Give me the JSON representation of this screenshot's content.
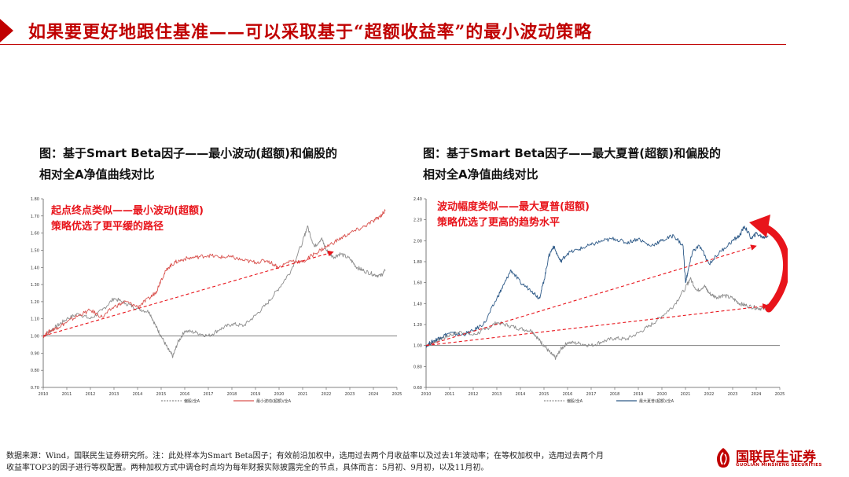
{
  "header": {
    "title": "如果要更好地跟住基准——可以采取基于“超额收益率”的最小波动策略"
  },
  "left_chart": {
    "title_line1": "图：基于Smart Beta因子——最小波动(超额)和偏股的",
    "title_line2": "相对全A净值曲线对比",
    "annotation_line1": "起点终点类似——最小波动(超额)",
    "annotation_line2": "策略优选了更平缓的路径",
    "legend": [
      "偏股/全A",
      "最小波动(超额)/全A"
    ]
  },
  "right_chart": {
    "title_line1": "图：基于Smart Beta因子——最大夏普(超额)和偏股的",
    "title_line2": "相对全A净值曲线对比",
    "annotation_line1": "波动幅度类似——最大夏普(超额)",
    "annotation_line2": "策略优选了更高的趋势水平",
    "legend": [
      "偏股/全A",
      "最大夏普(超额)/全A"
    ]
  },
  "footer": {
    "note_line1": "数据来源：Wind，国联民生证券研究所。注：此处样本为Smart Beta因子；有效前沿加权中，选用过去两个月收益率以及过去1年波动率；在等权加权中，选用过去两个月",
    "note_line2": "收益率TOP3的因子进行等权配置。两种加权方式中调仓时点均为每年财报实际披露完全的节点，具体而言：5月初、9月初，以及11月初。",
    "logo_cn": "国联民生证券",
    "logo_en": "GUOLIAN MINSHENG SECURITIES"
  },
  "colors": {
    "brand_red": "#c00000",
    "annotation_red": "#e8141b",
    "series_grey": "#8c8c8c",
    "series_red": "#d9534f",
    "series_blue": "#2e5a88",
    "baseline": "#7f7f7f"
  },
  "chart_data": [
    {
      "type": "line",
      "title": "图：基于Smart Beta因子——最小波动(超额)和偏股的相对全A净值曲线对比",
      "x_ticks": [
        "2010",
        "2011",
        "2012",
        "2013",
        "2014",
        "2015",
        "2016",
        "2017",
        "2018",
        "2019",
        "2020",
        "2021",
        "2022",
        "2023",
        "2024",
        "2025"
      ],
      "ylim": [
        0.7,
        1.8
      ],
      "y_ticks": [
        "0.70",
        "0.80",
        "0.90",
        "1.00",
        "1.10",
        "1.20",
        "1.30",
        "1.40",
        "1.50",
        "1.60",
        "1.70",
        "1.80"
      ],
      "baseline": 1.0,
      "grid": false,
      "legend_position": "bottom",
      "series": [
        {
          "name": "偏股/全A",
          "color": "#8c8c8c",
          "x": [
            2010.0,
            2010.3,
            2010.6,
            2011.0,
            2011.5,
            2012.0,
            2012.5,
            2013.0,
            2013.5,
            2014.0,
            2014.5,
            2014.8,
            2015.0,
            2015.3,
            2015.5,
            2015.7,
            2016.0,
            2016.5,
            2017.0,
            2017.5,
            2018.0,
            2018.5,
            2019.0,
            2019.5,
            2020.0,
            2020.5,
            2021.0,
            2021.2,
            2021.5,
            2021.8,
            2022.0,
            2022.3,
            2022.6,
            2023.0,
            2023.3,
            2023.6,
            2024.0,
            2024.3,
            2024.5
          ],
          "values": [
            1.0,
            1.03,
            1.06,
            1.1,
            1.13,
            1.1,
            1.15,
            1.22,
            1.19,
            1.16,
            1.14,
            1.05,
            1.0,
            0.92,
            0.88,
            0.96,
            1.03,
            1.02,
            1.0,
            1.04,
            1.07,
            1.06,
            1.12,
            1.19,
            1.28,
            1.38,
            1.55,
            1.64,
            1.52,
            1.57,
            1.5,
            1.46,
            1.48,
            1.45,
            1.4,
            1.38,
            1.36,
            1.35,
            1.38
          ]
        },
        {
          "name": "最小波动(超额)/全A",
          "color": "#d9534f",
          "x": [
            2010.0,
            2010.3,
            2010.6,
            2011.0,
            2011.5,
            2012.0,
            2012.5,
            2013.0,
            2013.5,
            2014.0,
            2014.5,
            2014.8,
            2015.0,
            2015.3,
            2015.6,
            2016.0,
            2016.5,
            2017.0,
            2017.5,
            2018.0,
            2018.5,
            2019.0,
            2019.5,
            2020.0,
            2020.5,
            2021.0,
            2021.5,
            2022.0,
            2022.5,
            2023.0,
            2023.5,
            2024.0,
            2024.3,
            2024.5
          ],
          "values": [
            1.0,
            1.03,
            1.05,
            1.08,
            1.12,
            1.15,
            1.11,
            1.17,
            1.2,
            1.17,
            1.22,
            1.26,
            1.33,
            1.4,
            1.43,
            1.45,
            1.46,
            1.47,
            1.46,
            1.46,
            1.44,
            1.43,
            1.44,
            1.4,
            1.44,
            1.43,
            1.48,
            1.52,
            1.56,
            1.6,
            1.63,
            1.67,
            1.7,
            1.73
          ]
        }
      ],
      "arrows": [
        {
          "from": [
            2010.0,
            1.0
          ],
          "to": [
            2022.3,
            1.49
          ]
        }
      ]
    },
    {
      "type": "line",
      "title": "图：基于Smart Beta因子——最大夏普(超额)和偏股的相对全A净值曲线对比",
      "x_ticks": [
        "2010",
        "2011",
        "2012",
        "2013",
        "2014",
        "2015",
        "2016",
        "2017",
        "2018",
        "2019",
        "2020",
        "2021",
        "2022",
        "2023",
        "2024",
        "2025"
      ],
      "ylim": [
        0.6,
        2.4
      ],
      "y_ticks": [
        "0.60",
        "0.80",
        "1.00",
        "1.20",
        "1.40",
        "1.60",
        "1.80",
        "2.00",
        "2.20",
        "2.40"
      ],
      "baseline": 1.0,
      "grid": false,
      "legend_position": "bottom",
      "series": [
        {
          "name": "偏股/全A",
          "color": "#8c8c8c",
          "x": [
            2010.0,
            2010.3,
            2010.6,
            2011.0,
            2011.5,
            2012.0,
            2012.5,
            2013.0,
            2013.5,
            2014.0,
            2014.5,
            2014.8,
            2015.0,
            2015.3,
            2015.5,
            2015.7,
            2016.0,
            2016.5,
            2017.0,
            2017.5,
            2018.0,
            2018.5,
            2019.0,
            2019.5,
            2020.0,
            2020.5,
            2021.0,
            2021.2,
            2021.5,
            2021.8,
            2022.0,
            2022.3,
            2022.6,
            2023.0,
            2023.3,
            2023.6,
            2024.0,
            2024.3,
            2024.5
          ],
          "values": [
            1.0,
            1.03,
            1.06,
            1.1,
            1.13,
            1.1,
            1.15,
            1.22,
            1.19,
            1.16,
            1.14,
            1.05,
            1.0,
            0.92,
            0.88,
            0.96,
            1.03,
            1.02,
            1.0,
            1.04,
            1.07,
            1.06,
            1.12,
            1.19,
            1.28,
            1.38,
            1.55,
            1.64,
            1.52,
            1.57,
            1.5,
            1.46,
            1.48,
            1.45,
            1.4,
            1.38,
            1.36,
            1.35,
            1.38
          ]
        },
        {
          "name": "最大夏普(超额)/全A",
          "color": "#2e5a88",
          "x": [
            2010.0,
            2010.3,
            2010.6,
            2011.0,
            2011.5,
            2012.0,
            2012.5,
            2013.0,
            2013.3,
            2013.6,
            2014.0,
            2014.5,
            2014.8,
            2015.0,
            2015.2,
            2015.4,
            2015.7,
            2016.0,
            2016.5,
            2017.0,
            2017.5,
            2018.0,
            2018.5,
            2019.0,
            2019.5,
            2020.0,
            2020.5,
            2020.9,
            2021.0,
            2021.1,
            2021.3,
            2021.6,
            2022.0,
            2022.5,
            2023.0,
            2023.3,
            2023.5,
            2023.8,
            2024.0,
            2024.3,
            2024.5
          ],
          "values": [
            1.0,
            1.04,
            1.08,
            1.12,
            1.1,
            1.14,
            1.22,
            1.45,
            1.58,
            1.72,
            1.6,
            1.52,
            1.45,
            1.62,
            1.85,
            1.95,
            1.8,
            1.88,
            1.92,
            1.96,
            2.0,
            2.02,
            1.98,
            2.02,
            1.95,
            2.0,
            2.05,
            1.95,
            1.6,
            1.7,
            1.9,
            1.95,
            1.78,
            1.9,
            2.0,
            2.05,
            2.14,
            2.02,
            2.07,
            2.03,
            2.05
          ]
        }
      ],
      "arrows": [
        {
          "from": [
            2010.0,
            1.0
          ],
          "to": [
            2024.0,
            1.95
          ]
        },
        {
          "from": [
            2010.0,
            1.0
          ],
          "to": [
            2024.5,
            1.38
          ]
        }
      ]
    }
  ]
}
